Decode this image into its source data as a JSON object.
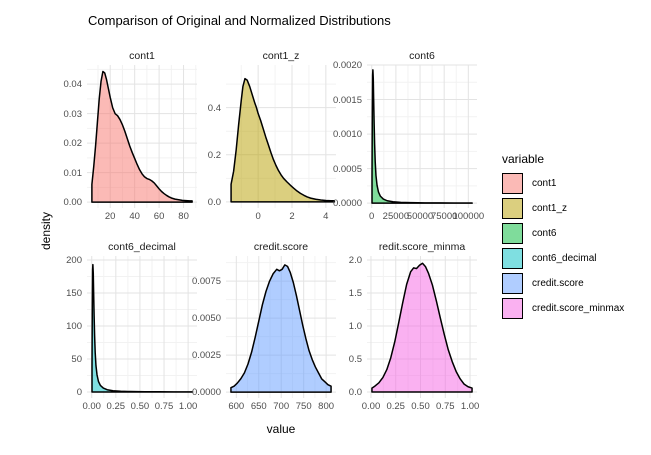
{
  "title": "Comparison of Original and Normalized Distributions",
  "axis_labels": {
    "x": "value",
    "y": "density"
  },
  "legend": {
    "title": "variable",
    "items": [
      {
        "label": "cont1",
        "color": "#F8766D"
      },
      {
        "label": "cont1_z",
        "color": "#B79F00"
      },
      {
        "label": "cont6",
        "color": "#00BA38"
      },
      {
        "label": "cont6_decimal",
        "color": "#00BFC4"
      },
      {
        "label": "credit.score",
        "color": "#619CFF"
      },
      {
        "label": "credit.score_minmax",
        "color": "#F564E3"
      }
    ]
  },
  "chart_data": {
    "type": "area",
    "subtype": "density-facets",
    "grid": "major-and-minor",
    "legend_position": "right",
    "outline_color": "#000000",
    "fill_alpha": 0.5,
    "facets": [
      {
        "facet_label": "cont1",
        "color": "#F8766D",
        "xlim": [
          1,
          91
        ],
        "ylim": [
          -0.002,
          0.0465
        ],
        "x_tick_values": [
          20,
          40,
          60,
          80
        ],
        "x_tick_labels": [
          "20",
          "40",
          "60",
          "80"
        ],
        "y_tick_values": [
          0,
          0.01,
          0.02,
          0.03,
          0.04
        ],
        "y_tick_labels": [
          "0.00",
          "0.01",
          "0.02",
          "0.03",
          "0.04"
        ],
        "points": [
          [
            5,
            0.006
          ],
          [
            6.5,
            0.012
          ],
          [
            8,
            0.019
          ],
          [
            9.5,
            0.027
          ],
          [
            11,
            0.035
          ],
          [
            12.5,
            0.041
          ],
          [
            14,
            0.0443
          ],
          [
            15.5,
            0.0438
          ],
          [
            17,
            0.0415
          ],
          [
            18.5,
            0.0385
          ],
          [
            20,
            0.0355
          ],
          [
            22,
            0.032
          ],
          [
            24,
            0.03
          ],
          [
            26,
            0.0293
          ],
          [
            28,
            0.028
          ],
          [
            30,
            0.0262
          ],
          [
            32,
            0.024
          ],
          [
            34,
            0.0215
          ],
          [
            36,
            0.019
          ],
          [
            38,
            0.0168
          ],
          [
            40,
            0.0148
          ],
          [
            42,
            0.0128
          ],
          [
            44,
            0.011
          ],
          [
            46,
            0.0096
          ],
          [
            48,
            0.0086
          ],
          [
            50,
            0.008
          ],
          [
            52,
            0.0077
          ],
          [
            54,
            0.0072
          ],
          [
            56,
            0.0065
          ],
          [
            58,
            0.0055
          ],
          [
            60,
            0.0045
          ],
          [
            62,
            0.0036
          ],
          [
            64,
            0.0029
          ],
          [
            66,
            0.0023
          ],
          [
            68,
            0.0018
          ],
          [
            70,
            0.0014
          ],
          [
            73,
            0.001
          ],
          [
            76,
            0.0008
          ],
          [
            79,
            0.0006
          ],
          [
            82,
            0.0005
          ],
          [
            85,
            0.0004
          ],
          [
            87,
            0.0004
          ]
        ]
      },
      {
        "facet_label": "cont1_z",
        "color": "#B79F00",
        "xlim": [
          -1.9,
          4.6
        ],
        "ylim": [
          -0.026,
          0.581
        ],
        "x_tick_values": [
          0,
          2,
          4
        ],
        "x_tick_labels": [
          "0",
          "2",
          "4"
        ],
        "y_tick_values": [
          0,
          0.2,
          0.4
        ],
        "y_tick_labels": [
          "0.0",
          "0.2",
          "0.4"
        ],
        "points": [
          [
            -1.6,
            0.075
          ],
          [
            -1.45,
            0.13
          ],
          [
            -1.3,
            0.22
          ],
          [
            -1.15,
            0.33
          ],
          [
            -1.0,
            0.43
          ],
          [
            -0.9,
            0.49
          ],
          [
            -0.78,
            0.523
          ],
          [
            -0.65,
            0.517
          ],
          [
            -0.5,
            0.49
          ],
          [
            -0.35,
            0.455
          ],
          [
            -0.2,
            0.42
          ],
          [
            -0.1,
            0.4
          ],
          [
            0,
            0.375
          ],
          [
            0.15,
            0.345
          ],
          [
            0.3,
            0.31
          ],
          [
            0.45,
            0.275
          ],
          [
            0.6,
            0.243
          ],
          [
            0.75,
            0.21
          ],
          [
            0.9,
            0.18
          ],
          [
            1.05,
            0.155
          ],
          [
            1.2,
            0.133
          ],
          [
            1.35,
            0.115
          ],
          [
            1.5,
            0.1
          ],
          [
            1.7,
            0.085
          ],
          [
            1.9,
            0.071
          ],
          [
            2.1,
            0.058
          ],
          [
            2.3,
            0.046
          ],
          [
            2.5,
            0.036
          ],
          [
            2.7,
            0.028
          ],
          [
            2.9,
            0.021
          ],
          [
            3.1,
            0.016
          ],
          [
            3.4,
            0.011
          ],
          [
            3.7,
            0.008
          ],
          [
            4.0,
            0.006
          ],
          [
            4.3,
            0.005
          ],
          [
            4.5,
            0.0045
          ]
        ]
      },
      {
        "facet_label": "cont6",
        "color": "#00BA38",
        "xlim": [
          -4900,
          109000
        ],
        "ylim": [
          -7e-05,
          0.002
        ],
        "x_tick_values": [
          0,
          25000,
          50000,
          75000,
          100000
        ],
        "x_tick_labels": [
          "0",
          "25000",
          "50000",
          "75000",
          "100000"
        ],
        "y_tick_values": [
          0,
          0.0005,
          0.001,
          0.0015,
          0.002
        ],
        "y_tick_labels": [
          "0.0000",
          "0.0005",
          "0.0010",
          "0.0015",
          "0.0020"
        ],
        "points": [
          [
            300,
            0.0004
          ],
          [
            600,
            0.0013
          ],
          [
            900,
            0.00185
          ],
          [
            1200,
            0.00193
          ],
          [
            1600,
            0.0018
          ],
          [
            2000,
            0.0015
          ],
          [
            2500,
            0.00115
          ],
          [
            3000,
            0.00085
          ],
          [
            3600,
            0.0006
          ],
          [
            4400,
            0.0004
          ],
          [
            5500,
            0.00026
          ],
          [
            7000,
            0.00016
          ],
          [
            9000,
            0.0001
          ],
          [
            12000,
            6e-05
          ],
          [
            16000,
            3.5e-05
          ],
          [
            22000,
            2e-05
          ],
          [
            30000,
            1.2e-05
          ],
          [
            40000,
            8e-06
          ],
          [
            55000,
            5e-06
          ],
          [
            70000,
            4e-06
          ],
          [
            85000,
            3e-06
          ],
          [
            100000,
            3e-06
          ],
          [
            104000,
            3e-06
          ]
        ]
      },
      {
        "facet_label": "cont6_decimal",
        "color": "#00BFC4",
        "xlim": [
          -0.049,
          1.092
        ],
        "ylim": [
          -9,
          206
        ],
        "x_tick_values": [
          0,
          0.25,
          0.5,
          0.75,
          1.0
        ],
        "x_tick_labels": [
          "0.00",
          "0.25",
          "0.50",
          "0.75",
          "1.00"
        ],
        "y_tick_values": [
          0,
          50,
          100,
          150,
          200
        ],
        "y_tick_labels": [
          "0",
          "50",
          "100",
          "150",
          "200"
        ],
        "points": [
          [
            0.003,
            40
          ],
          [
            0.006,
            130
          ],
          [
            0.009,
            185
          ],
          [
            0.012,
            193
          ],
          [
            0.016,
            180
          ],
          [
            0.02,
            150
          ],
          [
            0.025,
            115
          ],
          [
            0.03,
            85
          ],
          [
            0.036,
            60
          ],
          [
            0.044,
            40
          ],
          [
            0.055,
            26
          ],
          [
            0.07,
            16
          ],
          [
            0.09,
            10
          ],
          [
            0.12,
            6
          ],
          [
            0.16,
            3.5
          ],
          [
            0.22,
            2
          ],
          [
            0.3,
            1.2
          ],
          [
            0.4,
            0.8
          ],
          [
            0.55,
            0.5
          ],
          [
            0.7,
            0.4
          ],
          [
            0.85,
            0.3
          ],
          [
            1.0,
            0.3
          ],
          [
            1.04,
            0.3
          ]
        ]
      },
      {
        "facet_label": "credit.score",
        "color": "#619CFF",
        "xlim": [
          577,
          822
        ],
        "ylim": [
          -0.0004,
          0.0092
        ],
        "x_tick_values": [
          600,
          650,
          700,
          750,
          800
        ],
        "x_tick_labels": [
          "600",
          "650",
          "700",
          "750",
          "800"
        ],
        "y_tick_values": [
          0,
          0.0025,
          0.005,
          0.0075
        ],
        "y_tick_labels": [
          "0.0000",
          "0.0025",
          "0.0050",
          "0.0075"
        ],
        "points": [
          [
            588,
            0.0003
          ],
          [
            595,
            0.0004
          ],
          [
            602,
            0.0006
          ],
          [
            610,
            0.0009
          ],
          [
            618,
            0.0013
          ],
          [
            626,
            0.0019
          ],
          [
            634,
            0.0027
          ],
          [
            642,
            0.0037
          ],
          [
            650,
            0.0048
          ],
          [
            658,
            0.0059
          ],
          [
            666,
            0.0068
          ],
          [
            674,
            0.0075
          ],
          [
            682,
            0.008
          ],
          [
            690,
            0.0083
          ],
          [
            696,
            0.0082
          ],
          [
            702,
            0.0083
          ],
          [
            708,
            0.0086
          ],
          [
            714,
            0.0085
          ],
          [
            720,
            0.0081
          ],
          [
            727,
            0.0074
          ],
          [
            734,
            0.0065
          ],
          [
            741,
            0.0055
          ],
          [
            748,
            0.0045
          ],
          [
            755,
            0.0036
          ],
          [
            762,
            0.0028
          ],
          [
            769,
            0.0022
          ],
          [
            776,
            0.0017
          ],
          [
            783,
            0.0013
          ],
          [
            790,
            0.0009
          ],
          [
            797,
            0.0007
          ],
          [
            804,
            0.0005
          ],
          [
            811,
            0.0004
          ]
        ]
      },
      {
        "facet_label": "redit.score_minma",
        "color": "#F564E3",
        "xlim": [
          -0.04,
          1.07
        ],
        "ylim": [
          -0.09,
          2.06
        ],
        "x_tick_values": [
          0,
          0.25,
          0.5,
          0.75,
          1.0
        ],
        "x_tick_labels": [
          "0.00",
          "0.25",
          "0.50",
          "0.75",
          "1.00"
        ],
        "y_tick_values": [
          0,
          0.5,
          1.0,
          1.5,
          2.0
        ],
        "y_tick_labels": [
          "0.0",
          "0.5",
          "1.0",
          "1.5",
          "2.0"
        ],
        "points": [
          [
            0.01,
            0.06
          ],
          [
            0.04,
            0.09
          ],
          [
            0.08,
            0.14
          ],
          [
            0.12,
            0.22
          ],
          [
            0.16,
            0.34
          ],
          [
            0.2,
            0.52
          ],
          [
            0.24,
            0.76
          ],
          [
            0.28,
            1.05
          ],
          [
            0.32,
            1.35
          ],
          [
            0.36,
            1.63
          ],
          [
            0.4,
            1.82
          ],
          [
            0.43,
            1.88
          ],
          [
            0.46,
            1.87
          ],
          [
            0.49,
            1.92
          ],
          [
            0.52,
            1.95
          ],
          [
            0.55,
            1.9
          ],
          [
            0.58,
            1.8
          ],
          [
            0.62,
            1.62
          ],
          [
            0.66,
            1.38
          ],
          [
            0.7,
            1.12
          ],
          [
            0.74,
            0.87
          ],
          [
            0.78,
            0.64
          ],
          [
            0.82,
            0.46
          ],
          [
            0.86,
            0.31
          ],
          [
            0.9,
            0.2
          ],
          [
            0.94,
            0.12
          ],
          [
            0.98,
            0.08
          ],
          [
            1.02,
            0.06
          ]
        ]
      }
    ]
  }
}
